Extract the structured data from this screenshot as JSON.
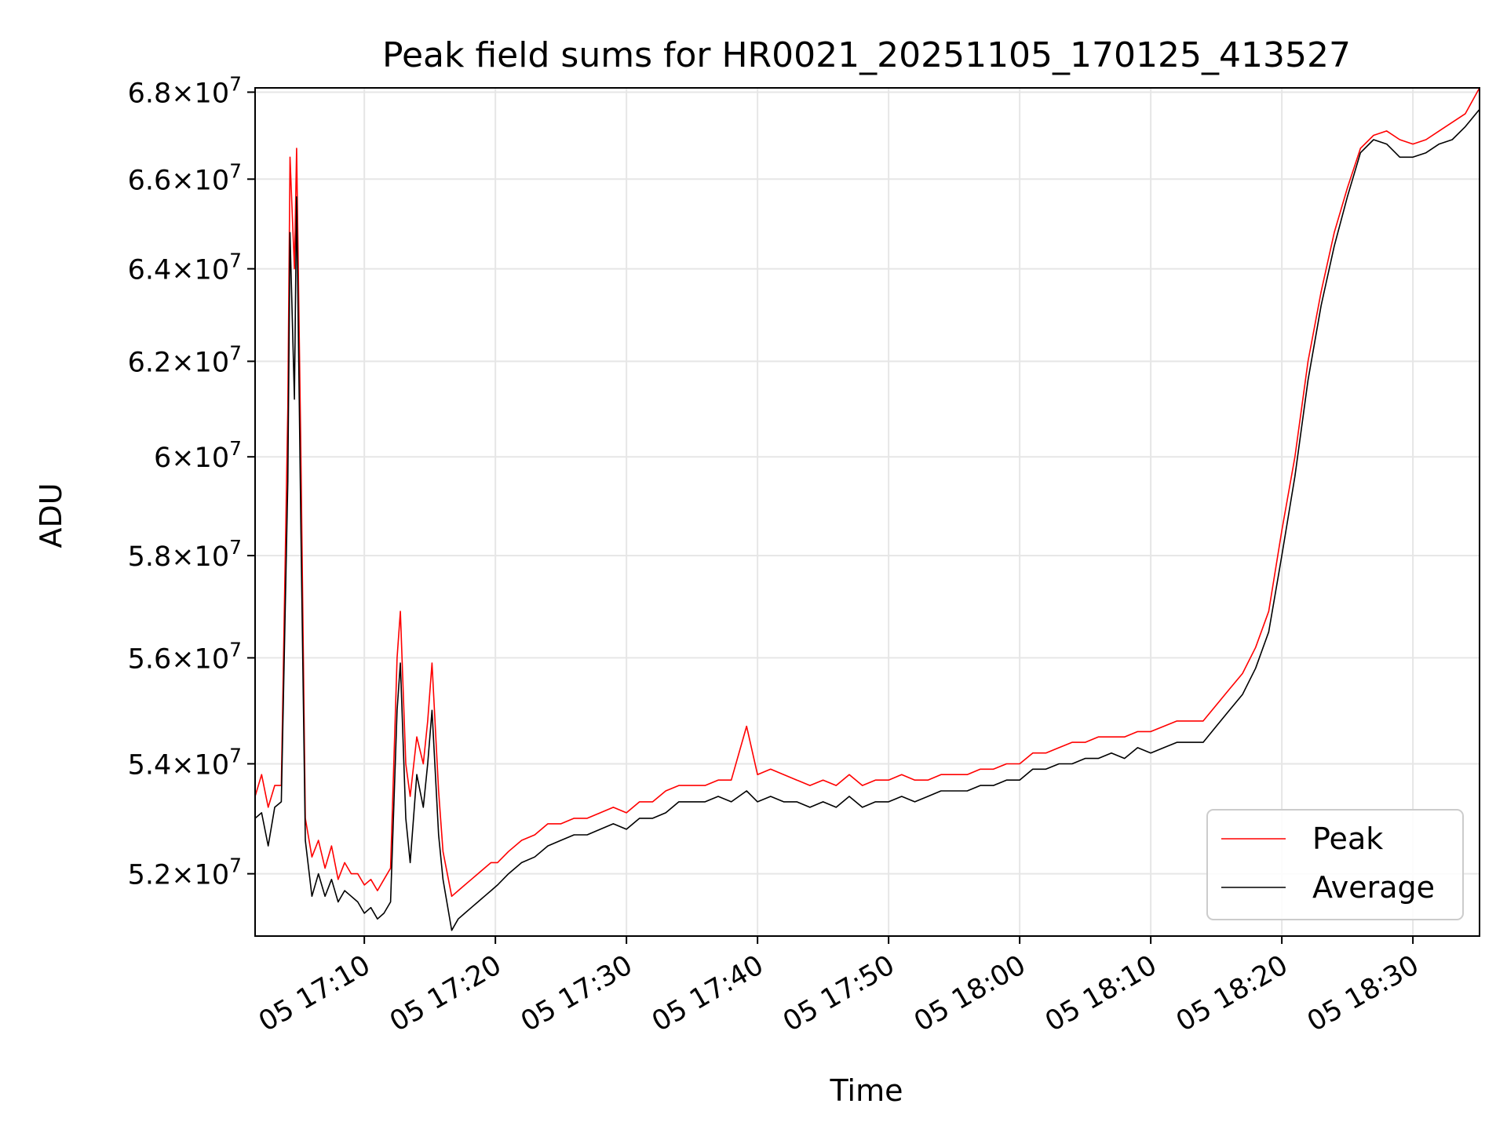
{
  "chart_data": {
    "type": "line",
    "title": "Peak field sums for HR0021_20251105_170125_413527",
    "xlabel": "Time",
    "ylabel": "ADU",
    "x_start": "05 17:01:40",
    "x_end": "05 18:35:05",
    "xlim": [
      "05 17:01:40",
      "05 18:35:05"
    ],
    "ylim": [
      50900000,
      68100000
    ],
    "y_log_scale": true,
    "x_ticks": [
      {
        "value": "05 17:10",
        "label": "05 17:10"
      },
      {
        "value": "05 17:20",
        "label": "05 17:20"
      },
      {
        "value": "05 17:30",
        "label": "05 17:30"
      },
      {
        "value": "05 17:40",
        "label": "05 17:40"
      },
      {
        "value": "05 17:50",
        "label": "05 17:50"
      },
      {
        "value": "05 18:00",
        "label": "05 18:00"
      },
      {
        "value": "05 18:10",
        "label": "05 18:10"
      },
      {
        "value": "05 18:20",
        "label": "05 18:20"
      },
      {
        "value": "05 18:30",
        "label": "05 18:30"
      }
    ],
    "y_ticks": [
      {
        "value": 52000000,
        "mant": "5.2",
        "exp": "7"
      },
      {
        "value": 54000000,
        "mant": "5.4",
        "exp": "7"
      },
      {
        "value": 56000000,
        "mant": "5.6",
        "exp": "7"
      },
      {
        "value": 58000000,
        "mant": "5.8",
        "exp": "7"
      },
      {
        "value": 60000000,
        "mant": "6",
        "exp": "7"
      },
      {
        "value": 62000000,
        "mant": "6.2",
        "exp": "7"
      },
      {
        "value": 64000000,
        "mant": "6.4",
        "exp": "7"
      },
      {
        "value": 66000000,
        "mant": "6.6",
        "exp": "7"
      },
      {
        "value": 68000000,
        "mant": "6.8",
        "exp": "7"
      }
    ],
    "grid": true,
    "legend_position": "lower-right",
    "series": [
      {
        "name": "Peak",
        "color": "#ff0000",
        "points": [
          [
            "05 17:01:40",
            53400000
          ],
          [
            "05 17:02:10",
            53800000
          ],
          [
            "05 17:02:40",
            53200000
          ],
          [
            "05 17:03:10",
            53600000
          ],
          [
            "05 17:03:40",
            53600000
          ],
          [
            "05 17:04:10",
            61000000
          ],
          [
            "05 17:04:20",
            66500000
          ],
          [
            "05 17:04:40",
            64000000
          ],
          [
            "05 17:04:50",
            66700000
          ],
          [
            "05 17:05:10",
            60000000
          ],
          [
            "05 17:05:30",
            53000000
          ],
          [
            "05 17:06:00",
            52300000
          ],
          [
            "05 17:06:30",
            52600000
          ],
          [
            "05 17:07:00",
            52100000
          ],
          [
            "05 17:07:30",
            52500000
          ],
          [
            "05 17:08:00",
            51900000
          ],
          [
            "05 17:08:30",
            52200000
          ],
          [
            "05 17:09:00",
            52000000
          ],
          [
            "05 17:09:30",
            52000000
          ],
          [
            "05 17:10:00",
            51800000
          ],
          [
            "05 17:10:30",
            51900000
          ],
          [
            "05 17:11:00",
            51700000
          ],
          [
            "05 17:11:30",
            51900000
          ],
          [
            "05 17:12:00",
            52100000
          ],
          [
            "05 17:12:30",
            56000000
          ],
          [
            "05 17:12:45",
            56900000
          ],
          [
            "05 17:13:10",
            54000000
          ],
          [
            "05 17:13:30",
            53400000
          ],
          [
            "05 17:14:00",
            54500000
          ],
          [
            "05 17:14:30",
            54000000
          ],
          [
            "05 17:14:50",
            54800000
          ],
          [
            "05 17:15:10",
            55900000
          ],
          [
            "05 17:15:40",
            53500000
          ],
          [
            "05 17:16:00",
            52400000
          ],
          [
            "05 17:16:40",
            51600000
          ],
          [
            "05 17:17:10",
            51700000
          ],
          [
            "05 17:17:40",
            51800000
          ],
          [
            "05 17:18:10",
            51900000
          ],
          [
            "05 17:18:40",
            52000000
          ],
          [
            "05 17:19:10",
            52100000
          ],
          [
            "05 17:19:40",
            52200000
          ],
          [
            "05 17:20:10",
            52200000
          ],
          [
            "05 17:21:00",
            52400000
          ],
          [
            "05 17:22:00",
            52600000
          ],
          [
            "05 17:23:00",
            52700000
          ],
          [
            "05 17:24:00",
            52900000
          ],
          [
            "05 17:25:00",
            52900000
          ],
          [
            "05 17:26:00",
            53000000
          ],
          [
            "05 17:27:00",
            53000000
          ],
          [
            "05 17:28:00",
            53100000
          ],
          [
            "05 17:29:00",
            53200000
          ],
          [
            "05 17:30:00",
            53100000
          ],
          [
            "05 17:31:00",
            53300000
          ],
          [
            "05 17:32:00",
            53300000
          ],
          [
            "05 17:33:00",
            53500000
          ],
          [
            "05 17:34:00",
            53600000
          ],
          [
            "05 17:35:00",
            53600000
          ],
          [
            "05 17:36:00",
            53600000
          ],
          [
            "05 17:37:00",
            53700000
          ],
          [
            "05 17:38:00",
            53700000
          ],
          [
            "05 17:39:10",
            54700000
          ],
          [
            "05 17:40:00",
            53800000
          ],
          [
            "05 17:41:00",
            53900000
          ],
          [
            "05 17:42:00",
            53800000
          ],
          [
            "05 17:43:00",
            53700000
          ],
          [
            "05 17:44:00",
            53600000
          ],
          [
            "05 17:45:00",
            53700000
          ],
          [
            "05 17:46:00",
            53600000
          ],
          [
            "05 17:47:00",
            53800000
          ],
          [
            "05 17:48:00",
            53600000
          ],
          [
            "05 17:49:00",
            53700000
          ],
          [
            "05 17:50:00",
            53700000
          ],
          [
            "05 17:51:00",
            53800000
          ],
          [
            "05 17:52:00",
            53700000
          ],
          [
            "05 17:53:00",
            53700000
          ],
          [
            "05 17:54:00",
            53800000
          ],
          [
            "05 17:55:00",
            53800000
          ],
          [
            "05 17:56:00",
            53800000
          ],
          [
            "05 17:57:00",
            53900000
          ],
          [
            "05 17:58:00",
            53900000
          ],
          [
            "05 17:59:00",
            54000000
          ],
          [
            "05 18:00:00",
            54000000
          ],
          [
            "05 18:01:00",
            54200000
          ],
          [
            "05 18:02:00",
            54200000
          ],
          [
            "05 18:03:00",
            54300000
          ],
          [
            "05 18:04:00",
            54400000
          ],
          [
            "05 18:05:00",
            54400000
          ],
          [
            "05 18:06:00",
            54500000
          ],
          [
            "05 18:07:00",
            54500000
          ],
          [
            "05 18:08:00",
            54500000
          ],
          [
            "05 18:09:00",
            54600000
          ],
          [
            "05 18:10:00",
            54600000
          ],
          [
            "05 18:11:00",
            54700000
          ],
          [
            "05 18:12:00",
            54800000
          ],
          [
            "05 18:13:00",
            54800000
          ],
          [
            "05 18:14:00",
            54800000
          ],
          [
            "05 18:15:00",
            55100000
          ],
          [
            "05 18:16:00",
            55400000
          ],
          [
            "05 18:17:00",
            55700000
          ],
          [
            "05 18:18:00",
            56200000
          ],
          [
            "05 18:19:00",
            56900000
          ],
          [
            "05 18:20:00",
            58500000
          ],
          [
            "05 18:21:00",
            60000000
          ],
          [
            "05 18:22:00",
            62000000
          ],
          [
            "05 18:23:00",
            63500000
          ],
          [
            "05 18:24:00",
            64800000
          ],
          [
            "05 18:25:00",
            65800000
          ],
          [
            "05 18:26:00",
            66700000
          ],
          [
            "05 18:27:00",
            67000000
          ],
          [
            "05 18:28:00",
            67100000
          ],
          [
            "05 18:29:00",
            66900000
          ],
          [
            "05 18:30:00",
            66800000
          ],
          [
            "05 18:31:00",
            66900000
          ],
          [
            "05 18:32:00",
            67100000
          ],
          [
            "05 18:33:00",
            67300000
          ],
          [
            "05 18:34:00",
            67500000
          ],
          [
            "05 18:35:05",
            68100000
          ]
        ]
      },
      {
        "name": "Average",
        "color": "#000000",
        "points": [
          [
            "05 17:01:40",
            53000000
          ],
          [
            "05 17:02:10",
            53100000
          ],
          [
            "05 17:02:40",
            52500000
          ],
          [
            "05 17:03:10",
            53200000
          ],
          [
            "05 17:03:40",
            53300000
          ],
          [
            "05 17:04:10",
            59500000
          ],
          [
            "05 17:04:20",
            64800000
          ],
          [
            "05 17:04:40",
            61200000
          ],
          [
            "05 17:04:50",
            65600000
          ],
          [
            "05 17:05:10",
            58500000
          ],
          [
            "05 17:05:30",
            52600000
          ],
          [
            "05 17:06:00",
            51600000
          ],
          [
            "05 17:06:30",
            52000000
          ],
          [
            "05 17:07:00",
            51600000
          ],
          [
            "05 17:07:30",
            51900000
          ],
          [
            "05 17:08:00",
            51500000
          ],
          [
            "05 17:08:30",
            51700000
          ],
          [
            "05 17:09:00",
            51600000
          ],
          [
            "05 17:09:30",
            51500000
          ],
          [
            "05 17:10:00",
            51300000
          ],
          [
            "05 17:10:30",
            51400000
          ],
          [
            "05 17:11:00",
            51200000
          ],
          [
            "05 17:11:30",
            51300000
          ],
          [
            "05 17:12:00",
            51500000
          ],
          [
            "05 17:12:30",
            55000000
          ],
          [
            "05 17:12:45",
            55900000
          ],
          [
            "05 17:13:10",
            53000000
          ],
          [
            "05 17:13:30",
            52200000
          ],
          [
            "05 17:14:00",
            53800000
          ],
          [
            "05 17:14:30",
            53200000
          ],
          [
            "05 17:14:50",
            54000000
          ],
          [
            "05 17:15:10",
            55000000
          ],
          [
            "05 17:15:40",
            52700000
          ],
          [
            "05 17:16:00",
            51900000
          ],
          [
            "05 17:16:40",
            51000000
          ],
          [
            "05 17:17:10",
            51200000
          ],
          [
            "05 17:17:40",
            51300000
          ],
          [
            "05 17:18:10",
            51400000
          ],
          [
            "05 17:18:40",
            51500000
          ],
          [
            "05 17:19:10",
            51600000
          ],
          [
            "05 17:19:40",
            51700000
          ],
          [
            "05 17:20:10",
            51800000
          ],
          [
            "05 17:21:00",
            52000000
          ],
          [
            "05 17:22:00",
            52200000
          ],
          [
            "05 17:23:00",
            52300000
          ],
          [
            "05 17:24:00",
            52500000
          ],
          [
            "05 17:25:00",
            52600000
          ],
          [
            "05 17:26:00",
            52700000
          ],
          [
            "05 17:27:00",
            52700000
          ],
          [
            "05 17:28:00",
            52800000
          ],
          [
            "05 17:29:00",
            52900000
          ],
          [
            "05 17:30:00",
            52800000
          ],
          [
            "05 17:31:00",
            53000000
          ],
          [
            "05 17:32:00",
            53000000
          ],
          [
            "05 17:33:00",
            53100000
          ],
          [
            "05 17:34:00",
            53300000
          ],
          [
            "05 17:35:00",
            53300000
          ],
          [
            "05 17:36:00",
            53300000
          ],
          [
            "05 17:37:00",
            53400000
          ],
          [
            "05 17:38:00",
            53300000
          ],
          [
            "05 17:39:10",
            53500000
          ],
          [
            "05 17:40:00",
            53300000
          ],
          [
            "05 17:41:00",
            53400000
          ],
          [
            "05 17:42:00",
            53300000
          ],
          [
            "05 17:43:00",
            53300000
          ],
          [
            "05 17:44:00",
            53200000
          ],
          [
            "05 17:45:00",
            53300000
          ],
          [
            "05 17:46:00",
            53200000
          ],
          [
            "05 17:47:00",
            53400000
          ],
          [
            "05 17:48:00",
            53200000
          ],
          [
            "05 17:49:00",
            53300000
          ],
          [
            "05 17:50:00",
            53300000
          ],
          [
            "05 17:51:00",
            53400000
          ],
          [
            "05 17:52:00",
            53300000
          ],
          [
            "05 17:53:00",
            53400000
          ],
          [
            "05 17:54:00",
            53500000
          ],
          [
            "05 17:55:00",
            53500000
          ],
          [
            "05 17:56:00",
            53500000
          ],
          [
            "05 17:57:00",
            53600000
          ],
          [
            "05 17:58:00",
            53600000
          ],
          [
            "05 17:59:00",
            53700000
          ],
          [
            "05 18:00:00",
            53700000
          ],
          [
            "05 18:01:00",
            53900000
          ],
          [
            "05 18:02:00",
            53900000
          ],
          [
            "05 18:03:00",
            54000000
          ],
          [
            "05 18:04:00",
            54000000
          ],
          [
            "05 18:05:00",
            54100000
          ],
          [
            "05 18:06:00",
            54100000
          ],
          [
            "05 18:07:00",
            54200000
          ],
          [
            "05 18:08:00",
            54100000
          ],
          [
            "05 18:09:00",
            54300000
          ],
          [
            "05 18:10:00",
            54200000
          ],
          [
            "05 18:11:00",
            54300000
          ],
          [
            "05 18:12:00",
            54400000
          ],
          [
            "05 18:13:00",
            54400000
          ],
          [
            "05 18:14:00",
            54400000
          ],
          [
            "05 18:15:00",
            54700000
          ],
          [
            "05 18:16:00",
            55000000
          ],
          [
            "05 18:17:00",
            55300000
          ],
          [
            "05 18:18:00",
            55800000
          ],
          [
            "05 18:19:00",
            56500000
          ],
          [
            "05 18:20:00",
            58000000
          ],
          [
            "05 18:21:00",
            59600000
          ],
          [
            "05 18:22:00",
            61600000
          ],
          [
            "05 18:23:00",
            63200000
          ],
          [
            "05 18:24:00",
            64500000
          ],
          [
            "05 18:25:00",
            65600000
          ],
          [
            "05 18:26:00",
            66600000
          ],
          [
            "05 18:27:00",
            66900000
          ],
          [
            "05 18:28:00",
            66800000
          ],
          [
            "05 18:29:00",
            66500000
          ],
          [
            "05 18:30:00",
            66500000
          ],
          [
            "05 18:31:00",
            66600000
          ],
          [
            "05 18:32:00",
            66800000
          ],
          [
            "05 18:33:00",
            66900000
          ],
          [
            "05 18:34:00",
            67200000
          ],
          [
            "05 18:35:05",
            67600000
          ]
        ]
      }
    ]
  }
}
